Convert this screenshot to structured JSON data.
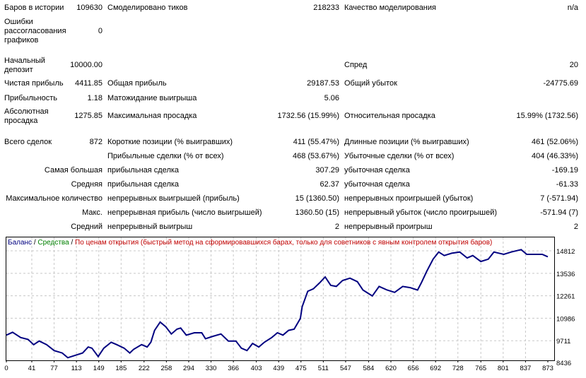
{
  "report": {
    "rows": [
      {
        "l1": "Баров в истории",
        "v1": "109630",
        "l2": "Смоделировано тиков",
        "v2": "218233",
        "l3": "Качество моделирования",
        "v3": "n/a"
      },
      {
        "l1": "Ошибки рассогласования графиков",
        "v1": "0",
        "l2": "",
        "v2": "",
        "l3": "",
        "v3": ""
      },
      {
        "l1": "Начальный депозит",
        "v1": "10000.00",
        "l2": "",
        "v2": "",
        "l3": "Спред",
        "v3": "20"
      },
      {
        "l1": "Чистая прибыль",
        "v1": "4411.85",
        "l2": "Общая прибыль",
        "v2": "29187.53",
        "l3": "Общий убыток",
        "v3": "-24775.69"
      },
      {
        "l1": "Прибыльность",
        "v1": "1.18",
        "l2": "Матожидание выигрыша",
        "v2": "5.06",
        "l3": "",
        "v3": ""
      },
      {
        "l1": "Абсолютная просадка",
        "v1": "1275.85",
        "l2": "Максимальная просадка",
        "v2": "1732.56 (15.99%)",
        "l3": "Относительная просадка",
        "v3": "15.99% (1732.56)"
      },
      {
        "l1": "Всего сделок",
        "v1": "872",
        "l2": "Короткие позиции (% выигравших)",
        "v2": "411 (55.47%)",
        "l3": "Длинные позиции (% выигравших)",
        "v3": "461 (52.06%)"
      },
      {
        "l1r": "",
        "l2": "Прибыльные сделки (% от всех)",
        "v2": "468 (53.67%)",
        "l3": "Убыточные сделки (% от всех)",
        "v3": "404 (46.33%)"
      },
      {
        "l1r": "Самая большая",
        "l2": "прибыльная сделка",
        "v2": "307.29",
        "l3": "убыточная сделка",
        "v3": "-169.19"
      },
      {
        "l1r": "Средняя",
        "l2": "прибыльная сделка",
        "v2": "62.37",
        "l3": "убыточная сделка",
        "v3": "-61.33"
      },
      {
        "l1r": "Максимальное количество",
        "l2": "непрерывных выигрышей (прибыль)",
        "v2": "15 (1360.50)",
        "l3": "непрерывных проигрышей (убыток)",
        "v3": "7 (-571.94)"
      },
      {
        "l1r": "Макс.",
        "l2": "непрерывная прибыль (число выигрышей)",
        "v2": "1360.50 (15)",
        "l3": "непрерывный убыток (число проигрышей)",
        "v3": "-571.94 (7)"
      },
      {
        "l1r": "Средний",
        "l2": "непрерывный выигрыш",
        "v2": "2",
        "l3": "непрерывный проигрыш",
        "v3": "2"
      }
    ]
  },
  "chart_data": {
    "type": "line",
    "legend": [
      {
        "text": "Баланс",
        "color": "#000080"
      },
      {
        "text": " / ",
        "color": "#000000"
      },
      {
        "text": "Средства",
        "color": "#008000"
      },
      {
        "text": " / ",
        "color": "#000000"
      },
      {
        "text": "По ценам открытия (быстрый метод на сформировавшихся барах, только для советников с явным контролем открытия баров)",
        "color": "#c00000"
      }
    ],
    "legend_placement": "top-left",
    "grid": true,
    "line_color": "#000080",
    "x_ticks": [
      0,
      41,
      77,
      113,
      149,
      185,
      222,
      258,
      294,
      330,
      366,
      403,
      439,
      475,
      511,
      547,
      584,
      620,
      656,
      692,
      728,
      765,
      801,
      837,
      873
    ],
    "y_ticks": [
      14812,
      13536,
      12261,
      10986,
      9711,
      8436
    ],
    "xlim": [
      0,
      873
    ],
    "series": [
      {
        "name": "Баланс",
        "x": [
          0,
          10,
          23,
          35,
          44,
          53,
          65,
          77,
          90,
          99,
          111,
          123,
          132,
          138,
          148,
          157,
          169,
          178,
          190,
          199,
          205,
          218,
          227,
          233,
          239,
          248,
          257,
          266,
          275,
          281,
          290,
          303,
          315,
          321,
          333,
          346,
          358,
          370,
          379,
          388,
          397,
          407,
          416,
          428,
          437,
          446,
          455,
          464,
          474,
          477,
          486,
          495,
          505,
          514,
          523,
          532,
          542,
          554,
          566,
          575,
          590,
          601,
          614,
          626,
          639,
          651,
          663,
          669,
          678,
          688,
          697,
          706,
          718,
          731,
          743,
          752,
          765,
          777,
          786,
          802,
          814,
          830,
          839,
          852,
          864,
          873
        ],
        "y": [
          10027,
          10188,
          9892,
          9784,
          9487,
          9690,
          9487,
          9150,
          9015,
          8746,
          8881,
          9015,
          9353,
          9285,
          8813,
          9285,
          9622,
          9487,
          9285,
          9015,
          9218,
          9487,
          9353,
          9622,
          10296,
          10768,
          10500,
          10094,
          10364,
          10431,
          10027,
          10161,
          10161,
          9825,
          9960,
          10094,
          9690,
          9690,
          9285,
          9150,
          9555,
          9353,
          9622,
          9892,
          10161,
          10027,
          10296,
          10364,
          10970,
          11644,
          12520,
          12655,
          12992,
          13329,
          12857,
          12790,
          13127,
          13262,
          13060,
          12588,
          12251,
          12790,
          12588,
          12453,
          12790,
          12723,
          12588,
          12992,
          13666,
          14340,
          14745,
          14542,
          14677,
          14745,
          14408,
          14542,
          14206,
          14340,
          14745,
          14610,
          14745,
          14880,
          14610,
          14610,
          14610,
          14475
        ]
      }
    ]
  }
}
